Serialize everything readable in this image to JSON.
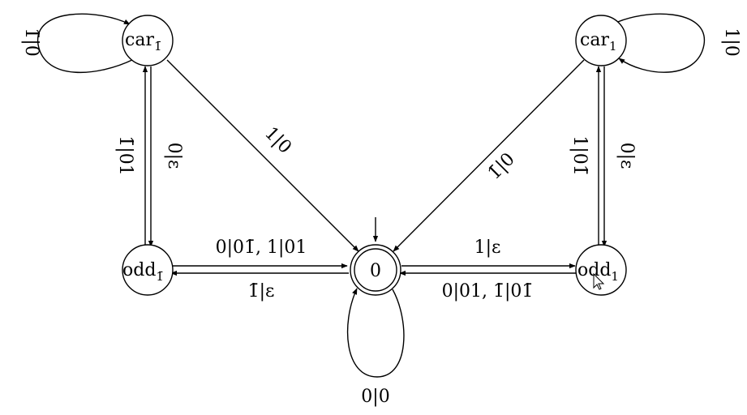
{
  "states": {
    "car_neg": {
      "name": "car",
      "sub": "1̄"
    },
    "car_pos": {
      "name": "car",
      "sub": "1"
    },
    "odd_neg": {
      "name": "odd",
      "sub": "1̄"
    },
    "odd_pos": {
      "name": "odd",
      "sub": "1"
    },
    "zero": {
      "name": "0",
      "accepting": true,
      "initial": true
    }
  },
  "edges": {
    "loop_car_neg": "1̄|0",
    "loop_car_pos": "1|0",
    "car_neg_to_zero": "1|0",
    "car_pos_to_zero": "1̄|0",
    "odd_neg_to_car_neg": "1̄|01",
    "car_neg_to_odd_neg": "0|ε",
    "odd_pos_to_car_pos": "1|01̄",
    "car_pos_to_odd_pos": "0|ε",
    "odd_neg_to_zero": "0|01̄, 1|01",
    "zero_to_odd_neg": "1̄|ε",
    "zero_to_odd_pos": "1|ε",
    "odd_pos_to_zero": "0|01, 1̄|01̄",
    "loop_zero": "0|0"
  }
}
